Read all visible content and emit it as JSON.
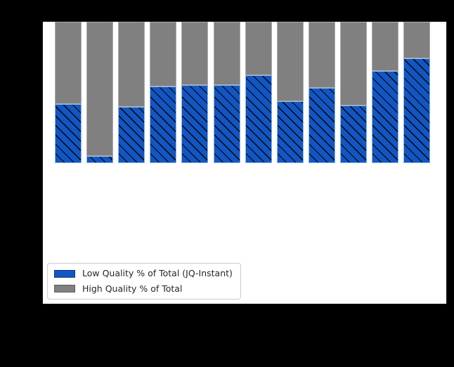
{
  "figure": {
    "background_color": "#000000",
    "plot_background_color": "#ffffff"
  },
  "legend": {
    "items": [
      {
        "label": "Low Quality % of Total (JQ-Instant)",
        "color": "#1156C2"
      },
      {
        "label": "High Quality % of Total",
        "color": "#808080"
      }
    ],
    "position": "lower left"
  },
  "chart_data": {
    "type": "bar",
    "stacked": true,
    "bar_count": 12,
    "series": [
      {
        "name": "Low Quality % of Total (JQ-Instant)",
        "color": "#1156C2",
        "hatch": "\\",
        "values": [
          42,
          5,
          40,
          54,
          55,
          55,
          62,
          44,
          53,
          41,
          65,
          74
        ]
      },
      {
        "name": "High Quality % of Total",
        "color": "#808080",
        "hatch": "",
        "values": [
          58,
          95,
          60,
          46,
          45,
          45,
          38,
          56,
          47,
          59,
          35,
          26
        ]
      }
    ],
    "stack_total": 100,
    "ylim": [
      -100,
      100
    ],
    "grid": false,
    "tick_labels_visible": false,
    "title": "",
    "xlabel": "",
    "ylabel": ""
  }
}
